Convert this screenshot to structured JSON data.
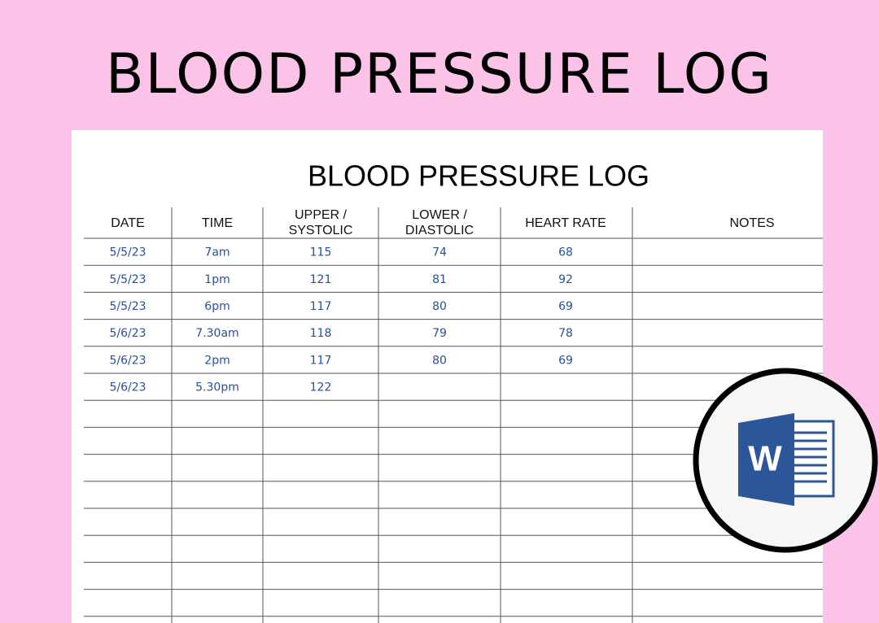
{
  "banner": {
    "title": "BLOOD PRESSURE LOG"
  },
  "sheet": {
    "title": "BLOOD PRESSURE LOG"
  },
  "table": {
    "headers": [
      "DATE",
      "TIME",
      "UPPER /\nSYSTOLIC",
      "LOWER /\nDIASTOLIC",
      "HEART RATE",
      "NOTES"
    ],
    "rows": [
      [
        "5/5/23",
        "7am",
        "115",
        "74",
        "68"
      ],
      [
        "5/5/23",
        "1pm",
        "121",
        "81",
        "92"
      ],
      [
        "5/5/23",
        "6pm",
        "117",
        "80",
        "69"
      ],
      [
        "5/6/23",
        "7.30am",
        "118",
        "79",
        "78"
      ],
      [
        "5/6/23",
        "2pm",
        "117",
        "80",
        "69"
      ],
      [
        "5/6/23",
        "5.30pm",
        "122"
      ]
    ]
  },
  "badge": {
    "letter": "W"
  }
}
